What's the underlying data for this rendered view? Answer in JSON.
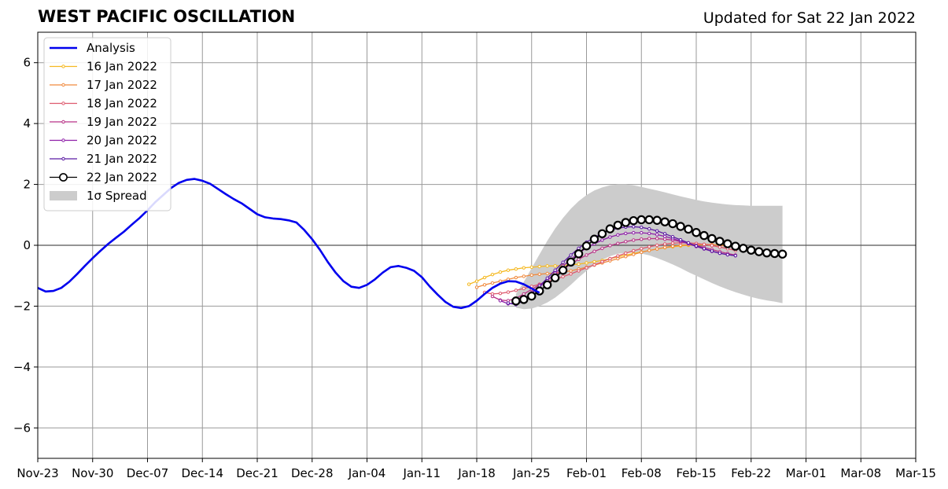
{
  "header": {
    "title": "WEST PACIFIC OSCILLATION",
    "updated": "Updated for Sat 22 Jan 2022"
  },
  "chart_data": {
    "type": "line",
    "title": "WEST PACIFIC OSCILLATION",
    "xlabel": "",
    "ylabel": "",
    "x_axis": {
      "type": "date",
      "range": [
        "2021-11-23",
        "2022-03-15"
      ],
      "tick_dates": [
        "2021-11-23",
        "2021-11-30",
        "2021-12-07",
        "2021-12-14",
        "2021-12-21",
        "2021-12-28",
        "2022-01-04",
        "2022-01-11",
        "2022-01-18",
        "2022-01-25",
        "2022-02-01",
        "2022-02-08",
        "2022-02-15",
        "2022-02-22",
        "2022-03-01",
        "2022-03-08",
        "2022-03-15"
      ],
      "tick_labels": [
        "Nov-23",
        "Nov-30",
        "Dec-07",
        "Dec-14",
        "Dec-21",
        "Dec-28",
        "Jan-04",
        "Jan-11",
        "Jan-18",
        "Jan-25",
        "Feb-01",
        "Feb-08",
        "Feb-15",
        "Feb-22",
        "Mar-01",
        "Mar-08",
        "Mar-15"
      ]
    },
    "ylim": [
      -7,
      7
    ],
    "yticks": [
      6,
      4,
      2,
      0,
      -2,
      -4,
      -6
    ],
    "ytick_labels": [
      "6",
      "4",
      "2",
      "0",
      "−2",
      "−4",
      "−6"
    ],
    "grid": true,
    "legend_position": "top-left",
    "colors": {
      "analysis": "#0000ee",
      "spread": "#cccccc",
      "grid": "#999999",
      "zero_line": "#555555"
    },
    "analysis": {
      "name": "Analysis",
      "start_date": "2021-11-23",
      "values": [
        -1.4,
        -1.52,
        -1.5,
        -1.4,
        -1.2,
        -0.95,
        -0.68,
        -0.42,
        -0.18,
        0.05,
        0.25,
        0.45,
        0.68,
        0.9,
        1.15,
        1.42,
        1.65,
        1.88,
        2.05,
        2.15,
        2.18,
        2.12,
        2.02,
        1.85,
        1.68,
        1.52,
        1.38,
        1.2,
        1.02,
        0.92,
        0.88,
        0.86,
        0.82,
        0.75,
        0.5,
        0.2,
        -0.15,
        -0.55,
        -0.9,
        -1.18,
        -1.36,
        -1.4,
        -1.3,
        -1.12,
        -0.9,
        -0.72,
        -0.68,
        -0.74,
        -0.84,
        -1.05,
        -1.35,
        -1.62,
        -1.86,
        -2.02,
        -2.06,
        -2.0,
        -1.82,
        -1.6,
        -1.4,
        -1.26,
        -1.18,
        -1.19,
        -1.28,
        -1.42,
        -1.56
      ]
    },
    "spread": {
      "name": "1σ Spread",
      "start_date": "2022-01-23",
      "upper": [
        -1.6,
        -1.2,
        -0.75,
        -0.3,
        0.15,
        0.55,
        0.9,
        1.2,
        1.45,
        1.65,
        1.8,
        1.9,
        1.97,
        2.0,
        2.0,
        1.97,
        1.92,
        1.86,
        1.8,
        1.74,
        1.67,
        1.61,
        1.55,
        1.49,
        1.44,
        1.4,
        1.37,
        1.34,
        1.32,
        1.31,
        1.3,
        1.3,
        1.3,
        1.3,
        1.3
      ],
      "lower": [
        -2.05,
        -2.1,
        -2.08,
        -2.0,
        -1.88,
        -1.72,
        -1.52,
        -1.3,
        -1.06,
        -0.84,
        -0.64,
        -0.48,
        -0.36,
        -0.28,
        -0.25,
        -0.24,
        -0.27,
        -0.33,
        -0.42,
        -0.52,
        -0.63,
        -0.75,
        -0.88,
        -1.0,
        -1.12,
        -1.24,
        -1.35,
        -1.45,
        -1.54,
        -1.62,
        -1.7,
        -1.76,
        -1.81,
        -1.85,
        -1.9
      ]
    },
    "series": [
      {
        "name": "16 Jan 2022",
        "color": "#f5b921",
        "start_date": "2022-01-17",
        "values": [
          -1.28,
          -1.18,
          -1.06,
          -0.96,
          -0.88,
          -0.82,
          -0.78,
          -0.74,
          -0.72,
          -0.7,
          -0.68,
          -0.68,
          -0.66,
          -0.64,
          -0.62,
          -0.58,
          -0.54,
          -0.5,
          -0.44,
          -0.38,
          -0.32,
          -0.27,
          -0.22,
          -0.17,
          -0.12,
          -0.08,
          -0.05,
          -0.02,
          0.0,
          0.01,
          0.02,
          0.02,
          0.01,
          -0.01,
          -0.04
        ]
      },
      {
        "name": "17 Jan 2022",
        "color": "#f08a3e",
        "start_date": "2022-01-18",
        "values": [
          -1.38,
          -1.3,
          -1.24,
          -1.18,
          -1.12,
          -1.06,
          -1.02,
          -0.98,
          -0.95,
          -0.93,
          -0.91,
          -0.88,
          -0.84,
          -0.78,
          -0.72,
          -0.65,
          -0.58,
          -0.51,
          -0.44,
          -0.37,
          -0.3,
          -0.23,
          -0.17,
          -0.12,
          -0.07,
          -0.03,
          0.0,
          0.02,
          0.03,
          0.03,
          0.02,
          0.0,
          -0.03,
          -0.07
        ]
      },
      {
        "name": "18 Jan 2022",
        "color": "#de5a6e",
        "start_date": "2022-01-19",
        "values": [
          -1.55,
          -1.6,
          -1.58,
          -1.54,
          -1.48,
          -1.42,
          -1.35,
          -1.28,
          -1.2,
          -1.12,
          -1.03,
          -0.94,
          -0.84,
          -0.74,
          -0.64,
          -0.54,
          -0.44,
          -0.35,
          -0.26,
          -0.18,
          -0.11,
          -0.05,
          0.0,
          0.04,
          0.07,
          0.08,
          0.08,
          0.06,
          0.03,
          -0.01,
          -0.06,
          -0.11,
          -0.17
        ]
      },
      {
        "name": "19 Jan 2022",
        "color": "#b83286",
        "start_date": "2022-01-20",
        "values": [
          -1.68,
          -1.8,
          -1.82,
          -1.74,
          -1.6,
          -1.45,
          -1.3,
          -1.14,
          -0.98,
          -0.8,
          -0.62,
          -0.46,
          -0.32,
          -0.2,
          -0.1,
          -0.01,
          0.06,
          0.12,
          0.17,
          0.2,
          0.22,
          0.22,
          0.2,
          0.17,
          0.12,
          0.06,
          0.0,
          -0.07,
          -0.14,
          -0.21,
          -0.27,
          -0.32
        ]
      },
      {
        "name": "20 Jan 2022",
        "color": "#8e1fa8",
        "start_date": "2022-01-21",
        "values": [
          -1.82,
          -1.92,
          -1.9,
          -1.76,
          -1.56,
          -1.36,
          -1.15,
          -0.92,
          -0.68,
          -0.46,
          -0.26,
          -0.09,
          0.05,
          0.17,
          0.27,
          0.34,
          0.39,
          0.41,
          0.41,
          0.39,
          0.35,
          0.29,
          0.22,
          0.14,
          0.05,
          -0.04,
          -0.12,
          -0.2,
          -0.26,
          -0.31,
          -0.34
        ]
      },
      {
        "name": "21 Jan 2022",
        "color": "#5b1aa3",
        "start_date": "2022-01-22",
        "values": [
          -1.9,
          -1.95,
          -1.82,
          -1.6,
          -1.34,
          -1.08,
          -0.82,
          -0.56,
          -0.32,
          -0.1,
          0.1,
          0.26,
          0.39,
          0.49,
          0.56,
          0.6,
          0.61,
          0.59,
          0.54,
          0.47,
          0.38,
          0.28,
          0.18,
          0.08,
          -0.02,
          -0.11,
          -0.19,
          -0.26,
          -0.31,
          -0.34
        ]
      },
      {
        "name": "22 Jan 2022",
        "color": "#000000",
        "start_date": "2022-01-23",
        "values": [
          -1.83,
          -1.78,
          -1.67,
          -1.5,
          -1.3,
          -1.07,
          -0.82,
          -0.55,
          -0.28,
          -0.02,
          0.2,
          0.38,
          0.54,
          0.66,
          0.75,
          0.81,
          0.84,
          0.84,
          0.82,
          0.77,
          0.71,
          0.62,
          0.53,
          0.42,
          0.32,
          0.22,
          0.13,
          0.05,
          -0.03,
          -0.1,
          -0.16,
          -0.21,
          -0.25,
          -0.27,
          -0.29
        ]
      }
    ]
  }
}
